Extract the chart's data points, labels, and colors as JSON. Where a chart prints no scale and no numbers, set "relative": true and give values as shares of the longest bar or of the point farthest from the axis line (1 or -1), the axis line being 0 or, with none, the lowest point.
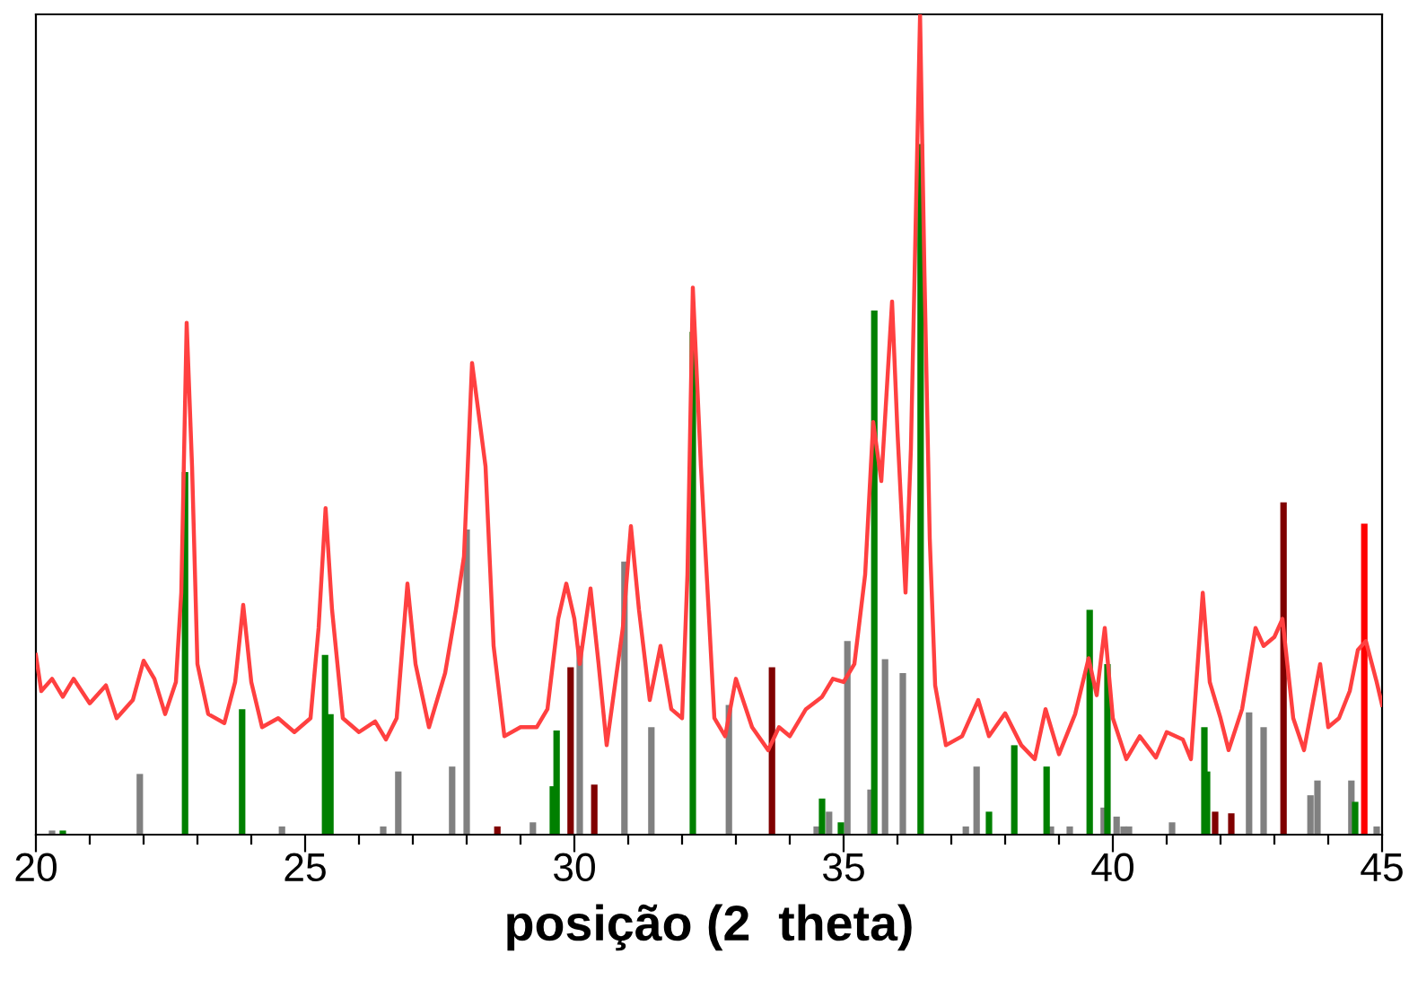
{
  "chart_data": {
    "type": "line",
    "relative": true,
    "xlabel": "posição (2  theta)",
    "xlim": [
      20,
      45
    ],
    "xticks": [
      20,
      {
        "value": 21,
        "label": null
      },
      {
        "value": 22,
        "label": null
      },
      {
        "value": 23,
        "label": null
      },
      {
        "value": 24,
        "label": null
      },
      25,
      {
        "value": 26,
        "label": null
      },
      {
        "value": 27,
        "label": null
      },
      {
        "value": 28,
        "label": null
      },
      {
        "value": 29,
        "label": null
      },
      30,
      {
        "value": 31,
        "label": null
      },
      {
        "value": 32,
        "label": null
      },
      {
        "value": 33,
        "label": null
      },
      {
        "value": 34,
        "label": null
      },
      35,
      {
        "value": 36,
        "label": null
      },
      {
        "value": 37,
        "label": null
      },
      {
        "value": 38,
        "label": null
      },
      {
        "value": 39,
        "label": null
      },
      40,
      {
        "value": 41,
        "label": null
      },
      {
        "value": 42,
        "label": null
      },
      {
        "value": 43,
        "label": null
      },
      {
        "value": 44,
        "label": null
      },
      45
    ],
    "grid": false,
    "legend": false,
    "tick_labels": "x",
    "series": [
      {
        "type": "bar",
        "color": "#808080",
        "x": [
          20.3,
          21.93,
          24.57,
          26.45,
          26.73,
          27.73,
          28.0,
          29.23,
          30.1,
          30.93,
          31.43,
          32.87,
          34.5,
          34.73,
          35.07,
          35.5,
          35.77,
          36.1,
          37.27,
          37.47,
          38.85,
          39.2,
          39.83,
          40.07,
          40.2,
          40.3,
          41.1,
          42.53,
          42.8,
          43.67,
          43.8,
          44.43,
          44.9
        ],
        "values": [
          0.005,
          0.074,
          0.01,
          0.01,
          0.077,
          0.083,
          0.372,
          0.015,
          0.23,
          0.333,
          0.131,
          0.158,
          0.01,
          0.028,
          0.236,
          0.055,
          0.214,
          0.197,
          0.01,
          0.083,
          0.01,
          0.01,
          0.033,
          0.022,
          0.01,
          0.01,
          0.015,
          0.149,
          0.131,
          0.048,
          0.066,
          0.066,
          0.01
        ]
      },
      {
        "type": "bar",
        "color": "#008000",
        "x": [
          20.5,
          22.77,
          23.83,
          25.37,
          25.47,
          29.6,
          29.67,
          32.2,
          34.6,
          34.95,
          35.57,
          36.43,
          37.7,
          38.17,
          38.77,
          39.57,
          39.9,
          41.7,
          41.75,
          44.5
        ],
        "values": [
          0.005,
          0.442,
          0.153,
          0.219,
          0.147,
          0.059,
          0.127,
          0.613,
          0.044,
          0.015,
          0.639,
          0.842,
          0.028,
          0.109,
          0.083,
          0.274,
          0.208,
          0.131,
          0.077,
          0.04
        ]
      },
      {
        "type": "bar",
        "color": "#800000",
        "x": [
          28.57,
          29.93,
          30.37,
          33.67,
          41.9,
          42.2,
          43.17
        ],
        "values": [
          0.01,
          0.204,
          0.061,
          0.204,
          0.028,
          0.026,
          0.405
        ]
      },
      {
        "type": "bar",
        "color": "#ff0000",
        "x": [
          44.67
        ],
        "values": [
          0.379
        ]
      },
      {
        "color": "#ff4040",
        "x": [
          20.0,
          20.1,
          20.3,
          20.5,
          20.7,
          21.0,
          21.3,
          21.5,
          21.8,
          22.0,
          22.2,
          22.4,
          22.6,
          22.7,
          22.8,
          22.9,
          23.0,
          23.2,
          23.5,
          23.7,
          23.85,
          24.0,
          24.2,
          24.5,
          24.8,
          25.1,
          25.25,
          25.38,
          25.5,
          25.7,
          26.0,
          26.3,
          26.5,
          26.7,
          26.9,
          27.05,
          27.3,
          27.6,
          27.8,
          27.95,
          28.1,
          28.35,
          28.5,
          28.7,
          29.0,
          29.3,
          29.5,
          29.7,
          29.85,
          30.0,
          30.1,
          30.3,
          30.45,
          30.6,
          30.9,
          31.05,
          31.2,
          31.4,
          31.6,
          31.8,
          32.0,
          32.1,
          32.2,
          32.35,
          32.6,
          32.8,
          33.0,
          33.3,
          33.6,
          33.8,
          34.0,
          34.3,
          34.6,
          34.8,
          35.0,
          35.2,
          35.4,
          35.55,
          35.7,
          35.9,
          36.0,
          36.15,
          36.25,
          36.42,
          36.5,
          36.6,
          36.7,
          36.9,
          37.2,
          37.5,
          37.7,
          38.0,
          38.3,
          38.55,
          38.75,
          39.0,
          39.3,
          39.55,
          39.7,
          39.85,
          40.0,
          40.25,
          40.5,
          40.8,
          41.0,
          41.3,
          41.45,
          41.67,
          41.8,
          42.0,
          42.15,
          42.4,
          42.65,
          42.8,
          43.0,
          43.15,
          43.35,
          43.55,
          43.85,
          44.0,
          44.2,
          44.4,
          44.55,
          44.7,
          44.9,
          45.0
        ],
        "values": [
          0.219,
          0.175,
          0.19,
          0.168,
          0.19,
          0.16,
          0.182,
          0.142,
          0.164,
          0.212,
          0.19,
          0.147,
          0.186,
          0.295,
          0.624,
          0.449,
          0.208,
          0.147,
          0.136,
          0.186,
          0.28,
          0.186,
          0.131,
          0.142,
          0.125,
          0.142,
          0.252,
          0.398,
          0.274,
          0.142,
          0.125,
          0.138,
          0.116,
          0.142,
          0.306,
          0.208,
          0.131,
          0.197,
          0.274,
          0.339,
          0.575,
          0.449,
          0.23,
          0.12,
          0.131,
          0.131,
          0.153,
          0.263,
          0.306,
          0.263,
          0.208,
          0.3,
          0.208,
          0.109,
          0.252,
          0.376,
          0.274,
          0.164,
          0.23,
          0.153,
          0.142,
          0.317,
          0.667,
          0.449,
          0.142,
          0.12,
          0.19,
          0.131,
          0.103,
          0.131,
          0.12,
          0.153,
          0.168,
          0.19,
          0.186,
          0.208,
          0.317,
          0.503,
          0.431,
          0.65,
          0.492,
          0.295,
          0.47,
          1.0,
          0.689,
          0.361,
          0.182,
          0.109,
          0.12,
          0.164,
          0.12,
          0.148,
          0.109,
          0.092,
          0.153,
          0.098,
          0.147,
          0.215,
          0.17,
          0.252,
          0.142,
          0.092,
          0.12,
          0.094,
          0.125,
          0.116,
          0.092,
          0.295,
          0.186,
          0.142,
          0.103,
          0.153,
          0.252,
          0.23,
          0.241,
          0.263,
          0.142,
          0.103,
          0.208,
          0.131,
          0.142,
          0.175,
          0.225,
          0.236,
          0.186,
          0.158
        ]
      }
    ]
  }
}
